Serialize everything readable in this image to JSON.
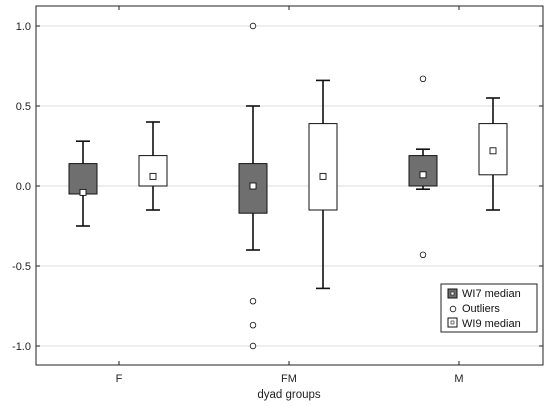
{
  "chart_data": {
    "type": "boxplot",
    "title": "",
    "xlabel": "dyad groups",
    "ylabel": "",
    "categories": [
      "F",
      "FM",
      "M"
    ],
    "ylim": [
      -1.1,
      1.1
    ],
    "yticks": [
      1.0,
      0.5,
      0.0,
      -0.5,
      -1.0
    ],
    "ytick_labels": [
      "1.0",
      "0.5",
      "0.0",
      "-0.5",
      "-1.0"
    ],
    "grid": "horizontal",
    "legend_position": "bottom-right",
    "legend": [
      {
        "label": "WI7 median",
        "symbol": "dark-box"
      },
      {
        "label": "Outliers",
        "symbol": "circle"
      },
      {
        "label": "WI9 median",
        "symbol": "light-box"
      }
    ],
    "colors": {
      "wi7_fill": "#6f6f6f",
      "wi9_fill": "#ffffff",
      "stroke": "#111111",
      "grid": "#dddddd"
    },
    "series": [
      {
        "name": "WI7 median",
        "boxes": [
          {
            "category": "F",
            "whisker_low": -0.25,
            "q1": -0.05,
            "median": -0.04,
            "q3": 0.14,
            "whisker_high": 0.28,
            "outliers": []
          },
          {
            "category": "FM",
            "whisker_low": -0.4,
            "q1": -0.17,
            "median": 0.0,
            "q3": 0.14,
            "whisker_high": 0.5,
            "outliers": [
              1.0,
              -0.72,
              -0.87,
              -1.0
            ]
          },
          {
            "category": "M",
            "whisker_low": -0.02,
            "q1": 0.0,
            "median": 0.07,
            "q3": 0.19,
            "whisker_high": 0.23,
            "outliers": [
              0.67,
              -0.43
            ]
          }
        ]
      },
      {
        "name": "WI9 median",
        "boxes": [
          {
            "category": "F",
            "whisker_low": -0.15,
            "q1": 0.0,
            "median": 0.06,
            "q3": 0.19,
            "whisker_high": 0.4,
            "outliers": []
          },
          {
            "category": "FM",
            "whisker_low": -0.64,
            "q1": -0.15,
            "median": 0.06,
            "q3": 0.39,
            "whisker_high": 0.66,
            "outliers": []
          },
          {
            "category": "M",
            "whisker_low": -0.15,
            "q1": 0.07,
            "median": 0.22,
            "q3": 0.39,
            "whisker_high": 0.55,
            "outliers": []
          }
        ]
      }
    ]
  }
}
